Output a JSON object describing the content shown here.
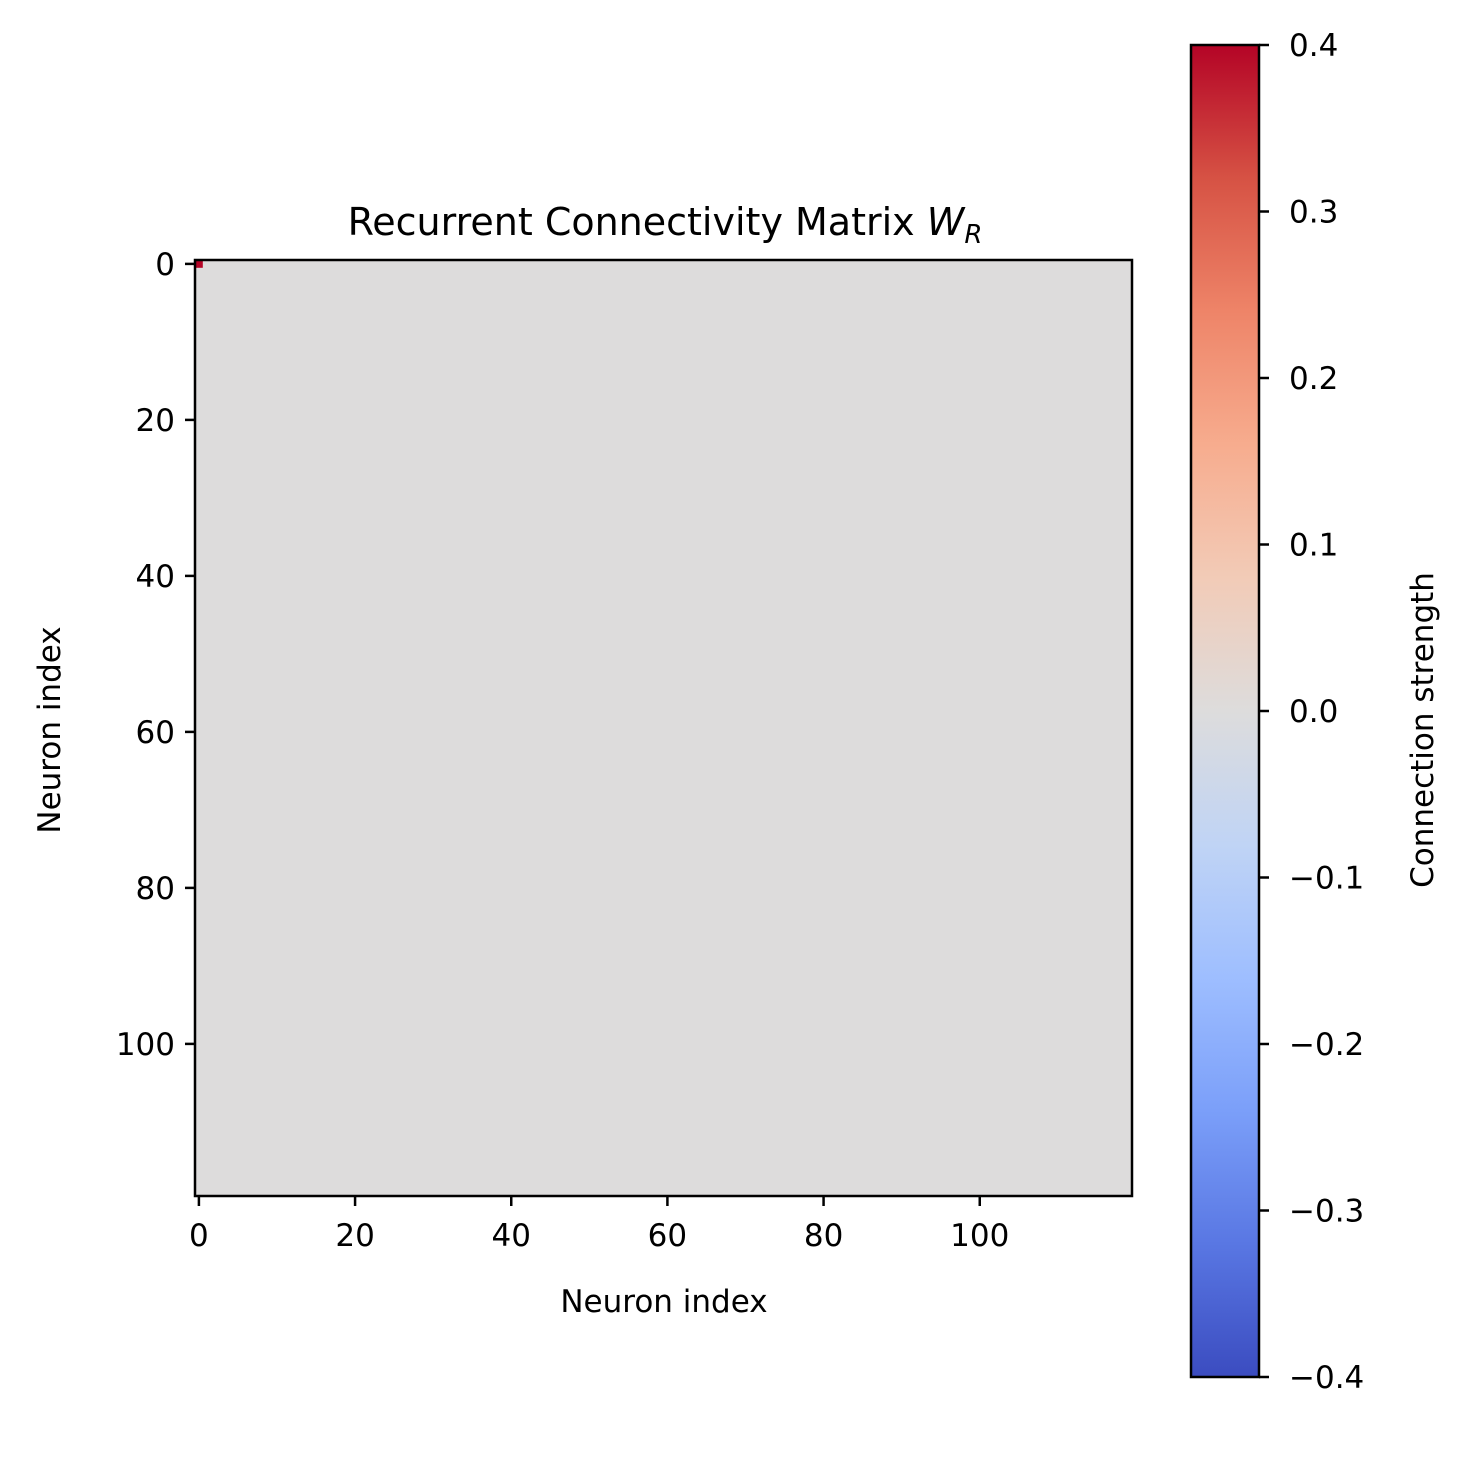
{
  "chart_data": {
    "type": "heatmap",
    "title": "Recurrent Connectivity Matrix",
    "title_symbol": "W",
    "title_subscript": "R",
    "xlabel": "Neuron index",
    "ylabel": "Neuron index",
    "rows": 120,
    "cols": 120,
    "background_value": 0.0,
    "cells": [
      {
        "row": 0,
        "col": 0,
        "value": 0.4
      }
    ],
    "x_ticks": [
      0,
      20,
      40,
      60,
      80,
      100
    ],
    "x_tick_labels": [
      "0",
      "20",
      "40",
      "60",
      "80",
      "100"
    ],
    "y_ticks": [
      0,
      20,
      40,
      60,
      80,
      100
    ],
    "y_tick_labels": [
      "0",
      "20",
      "40",
      "60",
      "80",
      "100"
    ],
    "colorbar": {
      "label": "Connection strength",
      "colormap": "coolwarm",
      "vmin": -0.4,
      "vmax": 0.4,
      "ticks": [
        0.4,
        0.3,
        0.2,
        0.1,
        0.0,
        -0.1,
        -0.2,
        -0.3,
        -0.4
      ],
      "tick_labels": [
        "0.4",
        "0.3",
        "0.2",
        "0.1",
        "0.0",
        "−0.1",
        "−0.2",
        "−0.3",
        "−0.4"
      ],
      "gradient_stops": [
        "#3b4cc0",
        "#5977e3",
        "#7b9ff9",
        "#9ebeff",
        "#c0d4f5",
        "#dddcdc",
        "#f2cbb7",
        "#f7ac8e",
        "#ee8468",
        "#d65244",
        "#b40426"
      ]
    }
  }
}
